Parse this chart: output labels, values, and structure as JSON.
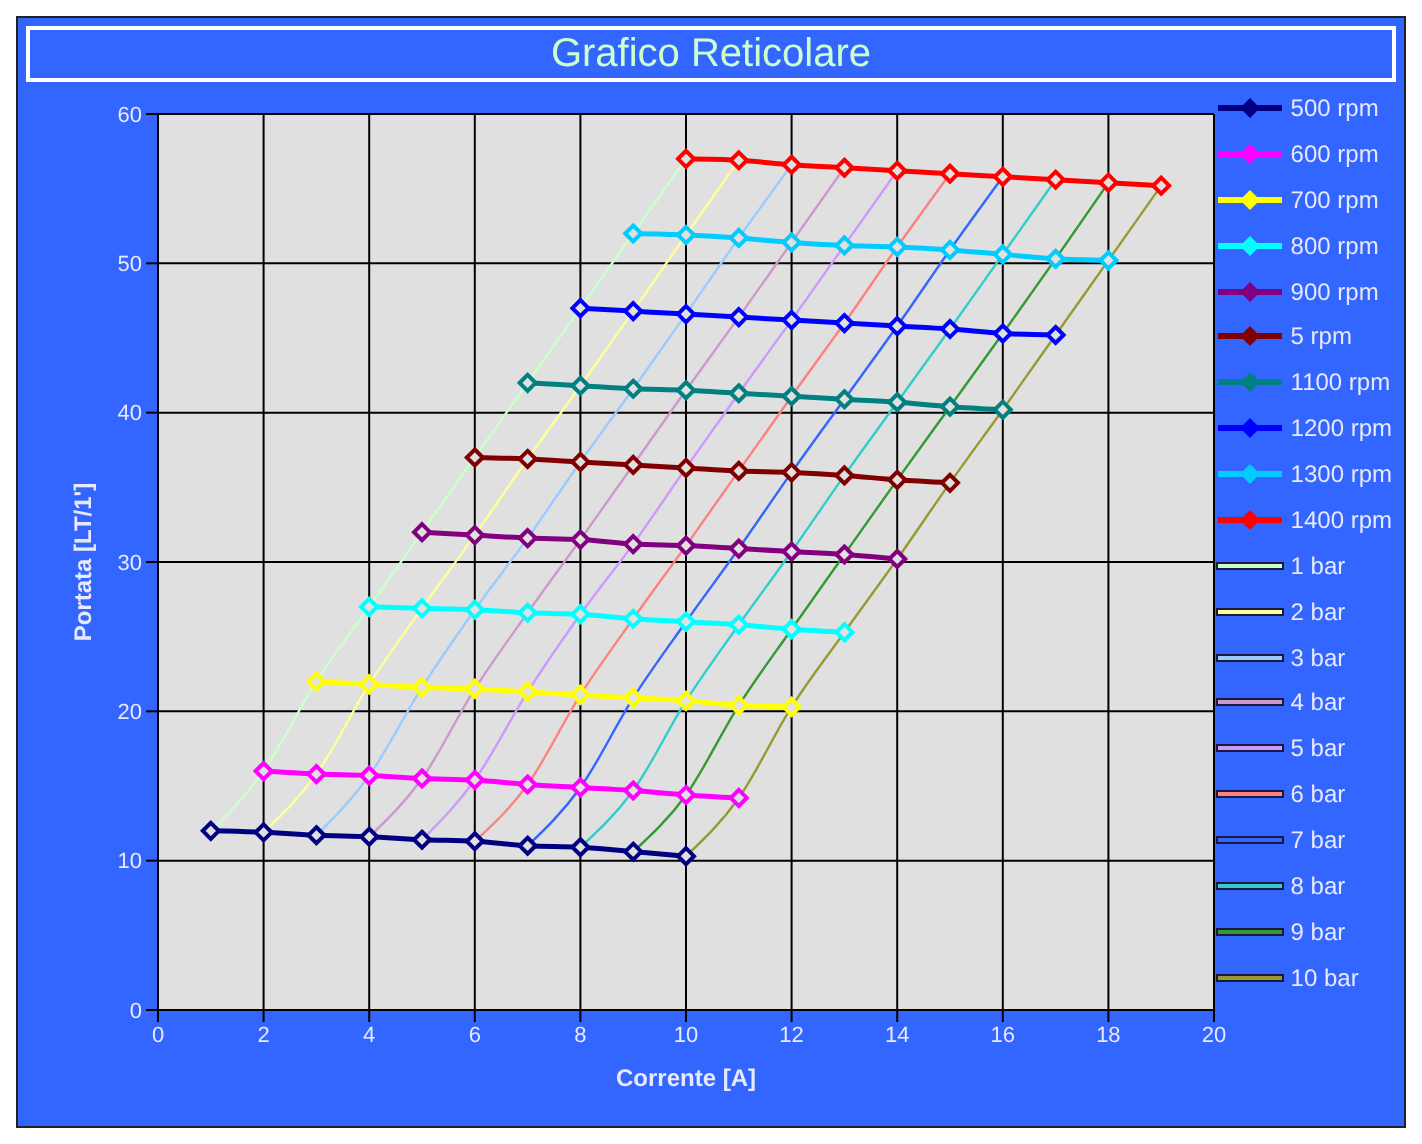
{
  "chart_data": {
    "type": "line",
    "title": "Grafico Reticolare",
    "xlabel": "Corrente [A]",
    "ylabel": "Portata [LT/1']",
    "xlim": [
      0,
      20
    ],
    "xticks": [
      0,
      2,
      4,
      6,
      8,
      10,
      12,
      14,
      16,
      18,
      20
    ],
    "ylim": [
      0,
      60
    ],
    "yticks": [
      0,
      10,
      20,
      30,
      40,
      50,
      60
    ],
    "grid": true,
    "legend": "right",
    "line_style": "solid",
    "series": [
      {
        "name": "500 rpm",
        "color": "#000080",
        "marker": "diamond",
        "x": [
          1,
          2,
          3,
          4,
          5,
          6,
          7,
          8,
          9,
          10
        ],
        "values": [
          12,
          11.9,
          11.7,
          11.6,
          11.4,
          11.3,
          11,
          10.9,
          10.6,
          10.3
        ]
      },
      {
        "name": "600 rpm",
        "color": "#ff00ff",
        "marker": "diamond",
        "x": [
          2,
          3,
          4,
          5,
          6,
          7,
          8,
          9,
          10,
          11
        ],
        "values": [
          16,
          15.8,
          15.7,
          15.5,
          15.4,
          15.1,
          14.9,
          14.7,
          14.4,
          14.2
        ]
      },
      {
        "name": "700 rpm",
        "color": "#ffff00",
        "marker": "diamond",
        "x": [
          3,
          4,
          5,
          6,
          7,
          8,
          9,
          10,
          11,
          12
        ],
        "values": [
          22,
          21.8,
          21.6,
          21.5,
          21.3,
          21.1,
          20.9,
          20.7,
          20.4,
          20.3
        ]
      },
      {
        "name": "800 rpm",
        "color": "#00ffff",
        "marker": "diamond",
        "x": [
          4,
          5,
          6,
          7,
          8,
          9,
          10,
          11,
          12,
          13
        ],
        "values": [
          27,
          26.9,
          26.8,
          26.6,
          26.5,
          26.2,
          26,
          25.8,
          25.5,
          25.3
        ]
      },
      {
        "name": "900 rpm",
        "color": "#800080",
        "marker": "diamond",
        "x": [
          5,
          6,
          7,
          8,
          9,
          10,
          11,
          12,
          13,
          14
        ],
        "values": [
          32,
          31.8,
          31.6,
          31.5,
          31.2,
          31.1,
          30.9,
          30.7,
          30.5,
          30.2
        ]
      },
      {
        "name": "5 rpm",
        "color": "#800000",
        "marker": "diamond",
        "x": [
          6,
          7,
          8,
          9,
          10,
          11,
          12,
          13,
          14,
          15
        ],
        "values": [
          37,
          36.9,
          36.7,
          36.5,
          36.3,
          36.1,
          36,
          35.8,
          35.5,
          35.3
        ]
      },
      {
        "name": "1100 rpm",
        "color": "#008080",
        "marker": "diamond",
        "x": [
          7,
          8,
          9,
          10,
          11,
          12,
          13,
          14,
          15,
          16
        ],
        "values": [
          42,
          41.8,
          41.6,
          41.5,
          41.3,
          41.1,
          40.9,
          40.7,
          40.4,
          40.2
        ]
      },
      {
        "name": "1200 rpm",
        "color": "#0000ff",
        "marker": "diamond",
        "x": [
          8,
          9,
          10,
          11,
          12,
          13,
          14,
          15,
          16,
          17
        ],
        "values": [
          47,
          46.8,
          46.6,
          46.4,
          46.2,
          46,
          45.8,
          45.6,
          45.3,
          45.2
        ]
      },
      {
        "name": "1300 rpm",
        "color": "#00ccff",
        "marker": "diamond",
        "x": [
          9,
          10,
          11,
          12,
          13,
          14,
          15,
          16,
          17,
          18
        ],
        "values": [
          52,
          51.9,
          51.7,
          51.4,
          51.2,
          51.1,
          50.9,
          50.6,
          50.3,
          50.2
        ]
      },
      {
        "name": "1400 rpm",
        "color": "#ff0000",
        "marker": "diamond",
        "x": [
          10,
          11,
          12,
          13,
          14,
          15,
          16,
          17,
          18,
          19
        ],
        "values": [
          57,
          56.9,
          56.6,
          56.4,
          56.2,
          56,
          55.8,
          55.6,
          55.4,
          55.2
        ]
      },
      {
        "name": "1 bar",
        "color": "#ccffcc",
        "marker": "none",
        "x": [
          1,
          2,
          3,
          4,
          5,
          6,
          7,
          8,
          9,
          10
        ],
        "values": [
          12,
          16,
          22,
          27,
          32,
          37,
          42,
          47,
          52,
          57
        ]
      },
      {
        "name": "2 bar",
        "color": "#ffff99",
        "marker": "none",
        "x": [
          2,
          3,
          4,
          5,
          6,
          7,
          8,
          9,
          10,
          11
        ],
        "values": [
          11.9,
          15.8,
          21.8,
          26.9,
          31.8,
          36.9,
          41.8,
          46.8,
          51.9,
          56.9
        ]
      },
      {
        "name": "3 bar",
        "color": "#99ccff",
        "marker": "none",
        "x": [
          3,
          4,
          5,
          6,
          7,
          8,
          9,
          10,
          11,
          12
        ],
        "values": [
          11.7,
          15.7,
          21.6,
          26.8,
          31.6,
          36.7,
          41.6,
          46.6,
          51.7,
          56.6
        ]
      },
      {
        "name": "4 bar",
        "color": "#cc99cc",
        "marker": "none",
        "x": [
          4,
          5,
          6,
          7,
          8,
          9,
          10,
          11,
          12,
          13
        ],
        "values": [
          11.6,
          15.5,
          21.5,
          26.6,
          31.5,
          36.5,
          41.5,
          46.4,
          51.4,
          56.4
        ]
      },
      {
        "name": "5 bar",
        "color": "#cc99ff",
        "marker": "none",
        "x": [
          5,
          6,
          7,
          8,
          9,
          10,
          11,
          12,
          13,
          14
        ],
        "values": [
          11.4,
          15.4,
          21.3,
          26.5,
          31.2,
          36.3,
          41.3,
          46.2,
          51.2,
          56.2
        ]
      },
      {
        "name": "6 bar",
        "color": "#ff8080",
        "marker": "none",
        "x": [
          6,
          7,
          8,
          9,
          10,
          11,
          12,
          13,
          14,
          15
        ],
        "values": [
          11.3,
          15.1,
          21.1,
          26.2,
          31.1,
          36.1,
          41.1,
          46,
          51.1,
          56
        ]
      },
      {
        "name": "7 bar",
        "color": "#3366ff",
        "marker": "none",
        "x": [
          7,
          8,
          9,
          10,
          11,
          12,
          13,
          14,
          15,
          16
        ],
        "values": [
          11,
          14.9,
          20.9,
          26,
          30.9,
          36,
          40.9,
          45.8,
          50.9,
          55.8
        ]
      },
      {
        "name": "8 bar",
        "color": "#33cccc",
        "marker": "none",
        "x": [
          8,
          9,
          10,
          11,
          12,
          13,
          14,
          15,
          16,
          17
        ],
        "values": [
          10.9,
          14.7,
          20.7,
          25.8,
          30.7,
          35.8,
          40.7,
          45.6,
          50.6,
          55.6
        ]
      },
      {
        "name": "9 bar",
        "color": "#339933",
        "marker": "none",
        "x": [
          9,
          10,
          11,
          12,
          13,
          14,
          15,
          16,
          17,
          18
        ],
        "values": [
          10.6,
          14.4,
          20.4,
          25.5,
          30.5,
          35.5,
          40.4,
          45.3,
          50.3,
          55.4
        ]
      },
      {
        "name": "10 bar",
        "color": "#999933",
        "marker": "none",
        "x": [
          10,
          11,
          12,
          13,
          14,
          15,
          16,
          17,
          18,
          19
        ],
        "values": [
          10.3,
          14.2,
          20.3,
          25.3,
          30.2,
          35.3,
          40.2,
          45.2,
          50.2,
          55.2
        ]
      }
    ]
  }
}
